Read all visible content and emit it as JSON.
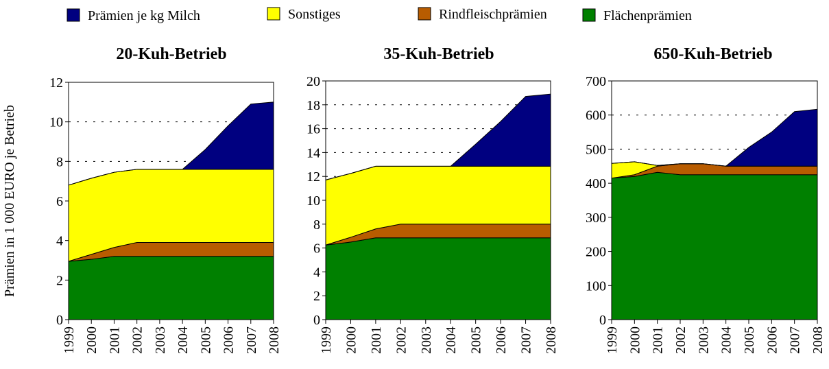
{
  "chart_data": [
    {
      "type": "area",
      "title": "20-Kuh-Betrieb",
      "ylabel": "Prämien in 1 000 EURO je Betrieb",
      "categories": [
        "1999",
        "2000",
        "2001",
        "2002",
        "2003",
        "2004",
        "2005",
        "2006",
        "2007",
        "2008"
      ],
      "ylim": [
        0,
        12
      ],
      "yticks": [
        0,
        2,
        4,
        6,
        8,
        10,
        12
      ],
      "grid": true,
      "stacked": true,
      "series": [
        {
          "name": "Flächenprämien",
          "color": "#008000",
          "values": [
            2.95,
            3.05,
            3.2,
            3.2,
            3.2,
            3.2,
            3.2,
            3.2,
            3.2,
            3.2
          ]
        },
        {
          "name": "Rindfleischprämien",
          "color": "#b85c00",
          "values": [
            0,
            0.25,
            0.45,
            0.7,
            0.7,
            0.7,
            0.7,
            0.7,
            0.7,
            0.7
          ]
        },
        {
          "name": "Sonstiges",
          "color": "#ffff00",
          "values": [
            3.85,
            3.85,
            3.8,
            3.7,
            3.7,
            3.7,
            3.7,
            3.7,
            3.7,
            3.7
          ]
        },
        {
          "name": "Prämien je kg Milch",
          "color": "#000080",
          "values": [
            0,
            0,
            0,
            0,
            0,
            0,
            1.0,
            2.2,
            3.3,
            3.4
          ]
        }
      ]
    },
    {
      "type": "area",
      "title": "35-Kuh-Betrieb",
      "categories": [
        "1999",
        "2000",
        "2001",
        "2002",
        "2003",
        "2004",
        "2005",
        "2006",
        "2007",
        "2008"
      ],
      "ylim": [
        0,
        20
      ],
      "yticks": [
        0,
        2,
        4,
        6,
        8,
        10,
        12,
        14,
        16,
        18,
        20
      ],
      "grid": true,
      "stacked": true,
      "series": [
        {
          "values": [
            6.25,
            6.5,
            6.85,
            6.85,
            6.85,
            6.85,
            6.85,
            6.85,
            6.85,
            6.85
          ]
        },
        {
          "values": [
            0,
            0.4,
            0.75,
            1.15,
            1.15,
            1.15,
            1.15,
            1.15,
            1.15,
            1.15
          ]
        },
        {
          "values": [
            5.45,
            5.35,
            5.25,
            4.85,
            4.85,
            4.85,
            4.85,
            4.85,
            4.85,
            4.85
          ]
        },
        {
          "values": [
            0,
            0,
            0,
            0,
            0,
            0,
            1.85,
            3.75,
            5.85,
            6.05
          ]
        }
      ]
    },
    {
      "type": "area",
      "title": "650-Kuh-Betrieb",
      "categories": [
        "1999",
        "2000",
        "2001",
        "2002",
        "2003",
        "2004",
        "2005",
        "2006",
        "2007",
        "2008"
      ],
      "ylim": [
        0,
        700
      ],
      "yticks": [
        0,
        100,
        200,
        300,
        400,
        500,
        600,
        700
      ],
      "grid": true,
      "stacked": true,
      "series": [
        {
          "values": [
            415,
            420,
            432,
            425,
            425,
            425,
            425,
            425,
            425,
            425
          ]
        },
        {
          "values": [
            0,
            5,
            18,
            32,
            32,
            25,
            25,
            25,
            25,
            25
          ]
        },
        {
          "values": [
            43,
            38,
            2,
            0,
            0,
            0,
            0,
            0,
            0,
            0
          ]
        },
        {
          "values": [
            0,
            0,
            0,
            0,
            0,
            0,
            55,
            100,
            160,
            167
          ]
        }
      ]
    }
  ]
}
